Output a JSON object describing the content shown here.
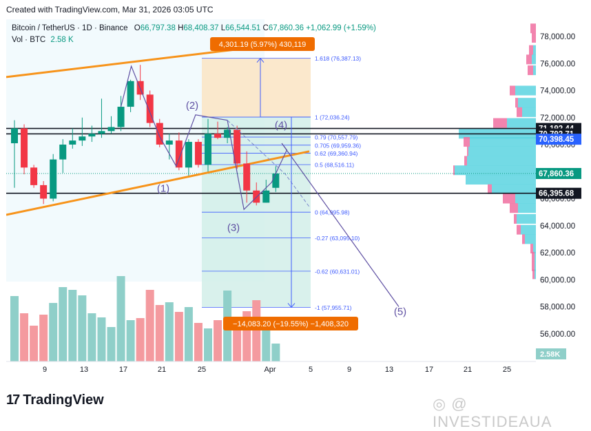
{
  "meta": {
    "created": "Created with TradingView.com, Mar 31, 2026 03:05 UTC"
  },
  "header": {
    "symbol": "Bitcoin / TetherUS · 1D · Binance",
    "o_label": "O",
    "o_value": "66,797.38",
    "h_label": "H",
    "h_value": "68,408.37",
    "l_label": "L",
    "l_value": "66,544.51",
    "c_label": "C",
    "c_value": "67,860.36",
    "change": "+1,062.99 (+1.59%)",
    "vol_label": "Vol · BTC",
    "vol_value": "2.58 K"
  },
  "colors": {
    "up": "#089981",
    "down": "#f23645",
    "upvol": "#8fcfc9",
    "downvol": "#f49a9f",
    "orange": "#f7931a",
    "fib": "#3d5afe",
    "wave": "#5e4fa2"
  },
  "price_axis": {
    "ticks": [
      "78,000.00",
      "76,000.00",
      "74,000.00",
      "72,000.00",
      "70,000.00",
      "68,000.00",
      "66,000.00",
      "64,000.00",
      "62,000.00",
      "60,000.00",
      "58,000.00",
      "56,000.00"
    ],
    "tick_values": [
      78000,
      76000,
      74000,
      72000,
      70000,
      68000,
      66000,
      64000,
      62000,
      60000,
      58000,
      56000
    ],
    "labels": [
      {
        "text": "71,192.44",
        "price": 71192.44,
        "style": "black"
      },
      {
        "text": "70,792.71",
        "price": 70792.71,
        "style": "black"
      },
      {
        "text": "70,398.45",
        "price": 70398.45,
        "style": "blue"
      },
      {
        "text": "67,860.36",
        "price": 67860.36,
        "style": "green"
      },
      {
        "text": "66,395.68",
        "price": 66395.68,
        "style": "black"
      }
    ],
    "vol_label": "2.58K"
  },
  "time_axis": {
    "ticks": [
      "9",
      "13",
      "17",
      "21",
      "25",
      "Apr",
      "5",
      "9",
      "13",
      "17",
      "21",
      "25"
    ]
  },
  "fib": [
    {
      "text": "1.618 (76,387.13)",
      "price": 76387.13
    },
    {
      "text": "1 (72,036.24)",
      "price": 72036.24
    },
    {
      "text": "0.79 (70,557.79)",
      "price": 70557.79
    },
    {
      "text": "0.705 (69,959.36)",
      "price": 69959.36
    },
    {
      "text": "0.62 (69,360.94)",
      "price": 69360.94
    },
    {
      "text": "0.5 (68,516.11)",
      "price": 68516.11
    },
    {
      "text": "0 (64,995.98)",
      "price": 64995.98
    },
    {
      "text": "-0.27 (63,095.10)",
      "price": 63095.1
    },
    {
      "text": "-0.62 (60,631.01)",
      "price": 60631.01
    },
    {
      "text": "-1 (57,955.71)",
      "price": 57955.71
    }
  ],
  "measure": {
    "up_label": "4,301.19 (5.97%) 430,119",
    "down_label": "−14,083.20 (−19.55%) −1,408,320"
  },
  "waves": [
    "(1)",
    "(2)",
    "(3)",
    "(4)",
    "(5)"
  ],
  "candles": [
    [
      70100,
      71800,
      66800,
      71200
    ],
    [
      71200,
      71500,
      67800,
      68300
    ],
    [
      68300,
      68500,
      66800,
      67000
    ],
    [
      67000,
      67300,
      65600,
      66000
    ],
    [
      66000,
      69300,
      65800,
      68900
    ],
    [
      68900,
      70400,
      67900,
      70000
    ],
    [
      70000,
      71200,
      69700,
      70300
    ],
    [
      70300,
      72000,
      69900,
      70600
    ],
    [
      70600,
      71400,
      70200,
      70800
    ],
    [
      70800,
      73400,
      70500,
      71000
    ],
    [
      71000,
      72100,
      70800,
      71300
    ],
    [
      71300,
      73600,
      71000,
      72800
    ],
    [
      72800,
      74800,
      72400,
      74700
    ],
    [
      74700,
      75900,
      73300,
      73700
    ],
    [
      73700,
      74000,
      71300,
      71600
    ],
    [
      71600,
      71900,
      69800,
      70000
    ],
    [
      70000,
      70800,
      68900,
      70300
    ],
    [
      70300,
      70900,
      68100,
      68300
    ],
    [
      68300,
      70400,
      67700,
      70200
    ],
    [
      70200,
      70400,
      68300,
      68500
    ],
    [
      68500,
      71900,
      68000,
      70800
    ],
    [
      70800,
      71700,
      70400,
      70500
    ],
    [
      70500,
      71300,
      70100,
      71100
    ],
    [
      71100,
      71400,
      68200,
      68600
    ],
    [
      68600,
      69500,
      65700,
      66600
    ],
    [
      66600,
      67200,
      65500,
      65700
    ],
    [
      65700,
      67400,
      65700,
      66600
    ],
    [
      66800,
      68400,
      66500,
      67860
    ]
  ],
  "volumes": [
    95,
    70,
    52,
    68,
    85,
    108,
    104,
    96,
    70,
    64,
    50,
    124,
    60,
    63,
    104,
    82,
    86,
    72,
    79,
    56,
    48,
    60,
    103,
    52,
    73,
    89,
    57,
    26
  ]
}
